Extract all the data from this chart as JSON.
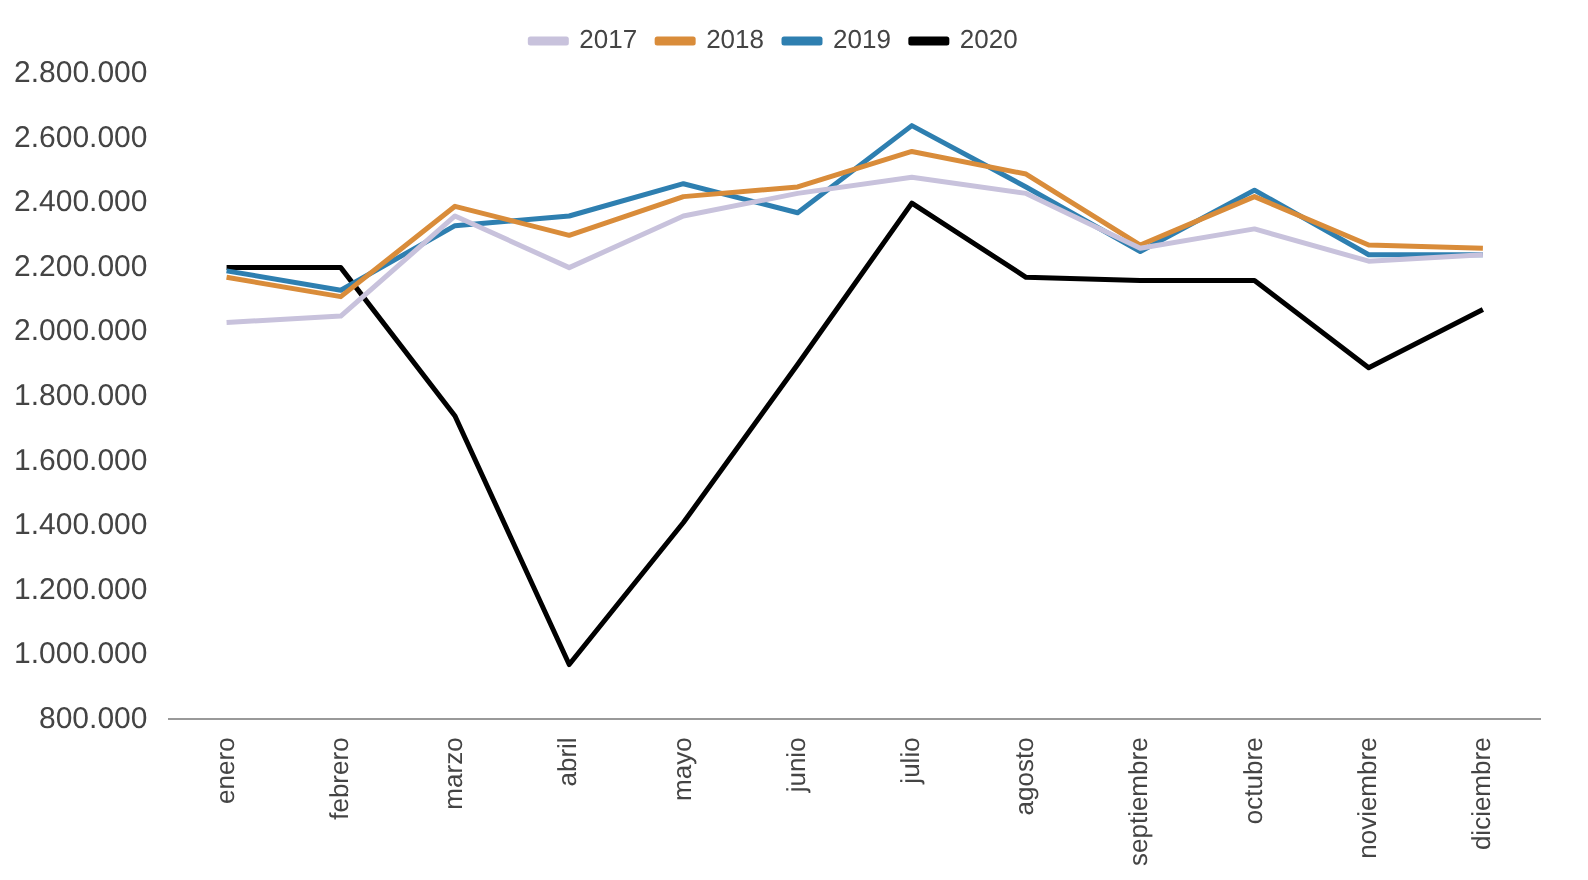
{
  "chart_data": {
    "type": "line",
    "categories": [
      "enero",
      "febrero",
      "marzo",
      "abril",
      "mayo",
      "junio",
      "julio",
      "agosto",
      "septiembre",
      "octubre",
      "noviembre",
      "diciembre"
    ],
    "series": [
      {
        "name": "2017",
        "color": "#c8c2dc",
        "values": [
          2030000,
          2050000,
          2360000,
          2200000,
          2360000,
          2430000,
          2480000,
          2430000,
          2260000,
          2320000,
          2220000,
          2240000
        ]
      },
      {
        "name": "2018",
        "color": "#d98c3a",
        "values": [
          2170000,
          2110000,
          2390000,
          2300000,
          2420000,
          2450000,
          2560000,
          2490000,
          2270000,
          2420000,
          2270000,
          2260000
        ]
      },
      {
        "name": "2019",
        "color": "#2e7fb0",
        "values": [
          2190000,
          2130000,
          2330000,
          2360000,
          2460000,
          2370000,
          2640000,
          2450000,
          2250000,
          2440000,
          2240000,
          2240000
        ]
      },
      {
        "name": "2020",
        "color": "#000000",
        "values": [
          2200000,
          2200000,
          1740000,
          970000,
          1410000,
          1900000,
          2400000,
          2170000,
          2160000,
          2160000,
          1890000,
          2070000
        ]
      }
    ],
    "ylim": [
      800000,
      2800000
    ],
    "yticks": [
      {
        "value": 800000,
        "label": "800.000"
      },
      {
        "value": 1000000,
        "label": "1.000.000"
      },
      {
        "value": 1200000,
        "label": "1.200.000"
      },
      {
        "value": 1400000,
        "label": "1.400.000"
      },
      {
        "value": 1600000,
        "label": "1.600.000"
      },
      {
        "value": 1800000,
        "label": "1.800.000"
      },
      {
        "value": 2000000,
        "label": "2.000.000"
      },
      {
        "value": 2200000,
        "label": "2.200.000"
      },
      {
        "value": 2400000,
        "label": "2.400.000"
      },
      {
        "value": 2600000,
        "label": "2.600.000"
      },
      {
        "value": 2800000,
        "label": "2.800.000"
      }
    ],
    "grid": false,
    "legend": "top",
    "marker": "none",
    "line_style": "solid"
  }
}
